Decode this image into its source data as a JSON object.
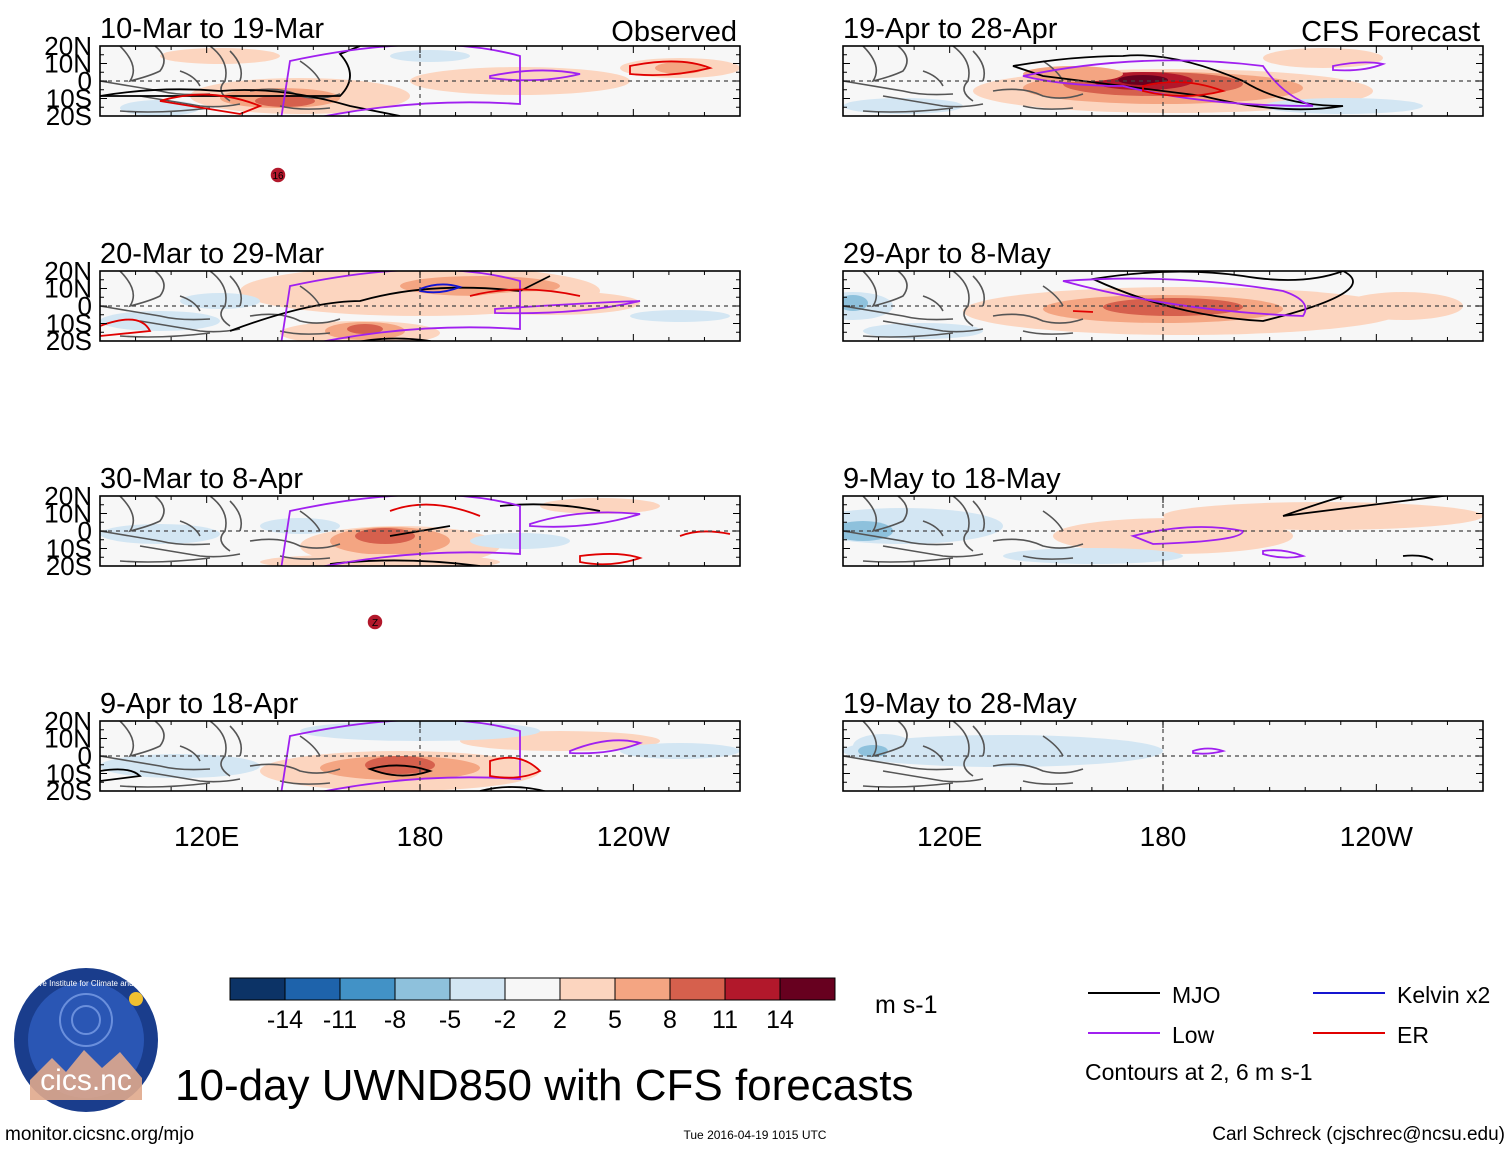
{
  "chart_data": {
    "type": "heatmap",
    "title": "10-day UWND850 with CFS forecasts",
    "variable": "UWND850",
    "columns": [
      {
        "label": "Observed",
        "panels": [
          "10-Mar to 19-Mar",
          "20-Mar to 29-Mar",
          "30-Mar to 8-Apr",
          "9-Apr to 18-Apr"
        ]
      },
      {
        "label": "CFS Forecast",
        "panels": [
          "19-Apr to 28-Apr",
          "29-Apr to 8-May",
          "9-May to 18-May",
          "19-May to 28-May"
        ]
      }
    ],
    "lat_ticks": [
      "20N",
      "10N",
      "0",
      "10S",
      "20S"
    ],
    "lon_ticks": [
      "120E",
      "180",
      "120W"
    ],
    "lat_range": [
      -20,
      20
    ],
    "lon_range": [
      90,
      270
    ],
    "colorbar": {
      "levels": [
        "-14",
        "-11",
        "-8",
        "-5",
        "-2",
        "2",
        "5",
        "8",
        "11",
        "14"
      ],
      "colors": [
        "#0c3366",
        "#1e63ab",
        "#4292c6",
        "#8ec1dc",
        "#d3e6f3",
        "#f7f7f7",
        "#fcd5bf",
        "#f4a582",
        "#d6604d",
        "#b2182b",
        "#67001f"
      ],
      "units": "m s-1"
    },
    "legend": [
      {
        "name": "MJO",
        "color": "#000000"
      },
      {
        "name": "Kelvin x2",
        "color": "#1515d0"
      },
      {
        "name": "Low",
        "color": "#a020f0"
      },
      {
        "name": "ER",
        "color": "#e00000"
      }
    ],
    "contour_note": "Contours at 2, 6 m s-1",
    "storm_labels": [
      "16",
      "Z"
    ]
  },
  "footer": {
    "url": "monitor.cicsnc.org/mjo",
    "timestamp": "Tue 2016-04-19 1015 UTC",
    "author": "Carl Schreck (cjschrec@ncsu.edu)"
  },
  "logo": {
    "ring_text": "Cooperative Institute for Climate and Satellites",
    "name": "cics.nc"
  }
}
